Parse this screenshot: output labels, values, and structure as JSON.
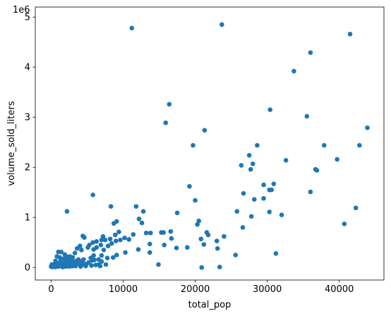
{
  "chart_data": {
    "type": "scatter",
    "xlabel": "total_pop",
    "ylabel": "volume_sold_liters",
    "y_offset_label": "1e6",
    "xlim": [
      -2200,
      46200
    ],
    "ylim": [
      -0.25,
      5.2
    ],
    "x_ticks": [
      0,
      10000,
      20000,
      30000,
      40000
    ],
    "x_tick_labels": [
      "0",
      "10000",
      "20000",
      "30000",
      "40000"
    ],
    "y_ticks": [
      0,
      1,
      2,
      3,
      4,
      5
    ],
    "y_tick_labels": [
      "0",
      "1",
      "2",
      "3",
      "4",
      "5"
    ],
    "grid": false,
    "marker_color": "#1f77b4",
    "y_unit_multiplier": 1000000,
    "points": [
      [
        11200,
        4.78
      ],
      [
        23700,
        4.85
      ],
      [
        41500,
        4.66
      ],
      [
        36000,
        4.29
      ],
      [
        33700,
        3.92
      ],
      [
        16400,
        3.26
      ],
      [
        30400,
        3.15
      ],
      [
        35500,
        3.02
      ],
      [
        15900,
        2.89
      ],
      [
        21300,
        2.74
      ],
      [
        43900,
        2.79
      ],
      [
        19700,
        2.44
      ],
      [
        28600,
        2.44
      ],
      [
        37900,
        2.44
      ],
      [
        42800,
        2.44
      ],
      [
        27500,
        2.24
      ],
      [
        32600,
        2.14
      ],
      [
        39700,
        2.16
      ],
      [
        26400,
        2.04
      ],
      [
        27700,
        1.96
      ],
      [
        28000,
        2.07
      ],
      [
        36700,
        1.96
      ],
      [
        36900,
        1.94
      ],
      [
        29500,
        1.65
      ],
      [
        30900,
        1.67
      ],
      [
        19200,
        1.62
      ],
      [
        26700,
        1.48
      ],
      [
        30300,
        1.55
      ],
      [
        30600,
        1.55
      ],
      [
        36000,
        1.51
      ],
      [
        5800,
        1.45
      ],
      [
        28200,
        1.36
      ],
      [
        29500,
        1.38
      ],
      [
        20000,
        1.34
      ],
      [
        8300,
        1.22
      ],
      [
        11800,
        1.22
      ],
      [
        2200,
        1.12
      ],
      [
        12800,
        1.12
      ],
      [
        17500,
        1.09
      ],
      [
        25800,
        1.12
      ],
      [
        30300,
        1.11
      ],
      [
        32000,
        1.05
      ],
      [
        42300,
        1.19
      ],
      [
        27800,
        1.02
      ],
      [
        12200,
        0.97
      ],
      [
        20500,
        0.93
      ],
      [
        12600,
        0.89
      ],
      [
        9100,
        0.92
      ],
      [
        8700,
        0.88
      ],
      [
        20300,
        0.86
      ],
      [
        40700,
        0.87
      ],
      [
        26600,
        0.8
      ],
      [
        21600,
        0.7
      ],
      [
        21800,
        0.65
      ],
      [
        11400,
        0.66
      ],
      [
        13200,
        0.69
      ],
      [
        13800,
        0.69
      ],
      [
        15300,
        0.7
      ],
      [
        15600,
        0.7
      ],
      [
        16600,
        0.72
      ],
      [
        16700,
        0.58
      ],
      [
        20800,
        0.57
      ],
      [
        23000,
        0.53
      ],
      [
        24000,
        0.62
      ],
      [
        21200,
        0.46
      ],
      [
        15700,
        0.45
      ],
      [
        13700,
        0.47
      ],
      [
        17400,
        0.39
      ],
      [
        18900,
        0.4
      ],
      [
        23100,
        0.38
      ],
      [
        12100,
        0.36
      ],
      [
        13700,
        0.3
      ],
      [
        9600,
        0.55
      ],
      [
        9000,
        0.53
      ],
      [
        8200,
        0.57
      ],
      [
        7500,
        0.55
      ],
      [
        7000,
        0.55
      ],
      [
        6300,
        0.52
      ],
      [
        5800,
        0.5
      ],
      [
        5300,
        0.45
      ],
      [
        4600,
        0.6
      ],
      [
        4200,
        0.35
      ],
      [
        3600,
        0.38
      ],
      [
        3300,
        0.29
      ],
      [
        2600,
        0.22
      ],
      [
        2300,
        0.21
      ],
      [
        1900,
        0.26
      ],
      [
        1400,
        0.31
      ],
      [
        1000,
        0.31
      ],
      [
        800,
        0.22
      ],
      [
        9400,
        0.71
      ],
      [
        10200,
        0.59
      ],
      [
        10800,
        0.56
      ],
      [
        10300,
        0.3
      ],
      [
        9100,
        0.25
      ],
      [
        8600,
        0.2
      ],
      [
        7800,
        0.19
      ],
      [
        7000,
        0.24
      ],
      [
        6600,
        0.16
      ],
      [
        5900,
        0.24
      ],
      [
        7000,
        0.12
      ],
      [
        7600,
        0.06
      ],
      [
        6600,
        0.06
      ],
      [
        6000,
        0.15
      ],
      [
        5500,
        0.19
      ],
      [
        4900,
        0.07
      ],
      [
        4400,
        0.09
      ],
      [
        4000,
        0.12
      ],
      [
        3600,
        0.07
      ],
      [
        3200,
        0.1
      ],
      [
        2900,
        0.14
      ],
      [
        2600,
        0.08
      ],
      [
        2300,
        0.05
      ],
      [
        2100,
        0.12
      ],
      [
        1900,
        0.07
      ],
      [
        1700,
        0.04
      ],
      [
        1500,
        0.1
      ],
      [
        1300,
        0.14
      ],
      [
        1100,
        0.08
      ],
      [
        900,
        0.05
      ],
      [
        700,
        0.09
      ],
      [
        500,
        0.03
      ],
      [
        400,
        0.06
      ],
      [
        300,
        0.02
      ],
      [
        200,
        0.04
      ],
      [
        100,
        0.01
      ],
      [
        0,
        0.02
      ],
      [
        100,
        0.06
      ],
      [
        600,
        0.01
      ],
      [
        1000,
        0.02
      ],
      [
        1200,
        0.03
      ],
      [
        1600,
        0.01
      ],
      [
        2000,
        0.02
      ],
      [
        2500,
        0.02
      ],
      [
        3000,
        0.03
      ],
      [
        3400,
        0.03
      ],
      [
        4100,
        0.02
      ],
      [
        4800,
        0.03
      ],
      [
        5600,
        0.04
      ],
      [
        6200,
        0.05
      ],
      [
        6800,
        0.03
      ],
      [
        14900,
        0.06
      ],
      [
        20900,
        0.0
      ],
      [
        23400,
        0.01
      ],
      [
        25600,
        0.25
      ],
      [
        31200,
        0.28
      ],
      [
        2800,
        0.03
      ],
      [
        3800,
        0.16
      ],
      [
        4500,
        0.16
      ],
      [
        5100,
        0.4
      ],
      [
        5900,
        0.36
      ],
      [
        6300,
        0.4
      ],
      [
        6900,
        0.45
      ],
      [
        7300,
        0.35
      ],
      [
        7900,
        0.43
      ],
      [
        8400,
        0.48
      ],
      [
        4000,
        0.43
      ],
      [
        4400,
        0.63
      ],
      [
        7200,
        0.62
      ],
      [
        8900,
        0.65
      ],
      [
        3000,
        0.2
      ],
      [
        1800,
        0.18
      ],
      [
        2400,
        0.15
      ],
      [
        1200,
        0.2
      ],
      [
        600,
        0.13
      ],
      [
        3500,
        0.13
      ],
      [
        4200,
        0.05
      ],
      [
        5200,
        0.1
      ],
      [
        5700,
        0.14
      ],
      [
        1400,
        0.04
      ]
    ]
  }
}
